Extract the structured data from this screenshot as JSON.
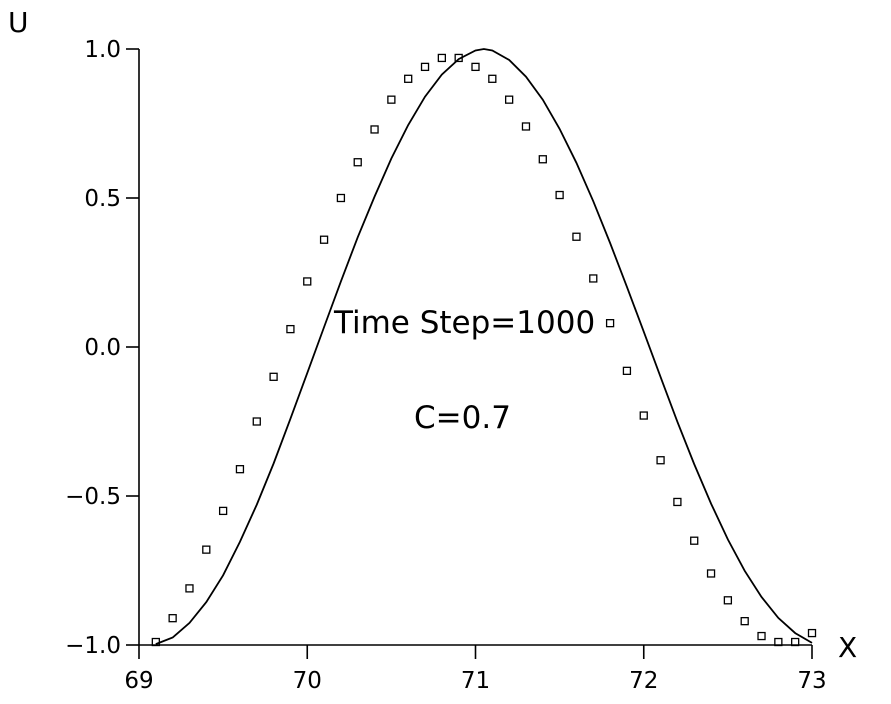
{
  "chart_data": {
    "type": "line",
    "title": "",
    "xlabel": "X",
    "ylabel": "U",
    "xlim": [
      69,
      73
    ],
    "ylim": [
      -1.0,
      1.0
    ],
    "x_ticks": [
      69,
      70,
      71,
      72,
      73
    ],
    "x_tick_labels": [
      "69",
      "70",
      "71",
      "72",
      "73"
    ],
    "y_ticks": [
      -1.0,
      -0.5,
      0.0,
      0.5,
      1.0
    ],
    "y_tick_labels": [
      "−1.0",
      "−0.5",
      "0.0",
      "0.5",
      "1.0"
    ],
    "grid": false,
    "legend": "none",
    "annotations": [
      "Time Step=1000",
      "C=0.7"
    ],
    "series": [
      {
        "kind": "line",
        "marker": "none",
        "color": "#000000",
        "x": [
          69.1,
          69.2,
          69.3,
          69.4,
          69.5,
          69.6,
          69.7,
          69.8,
          69.9,
          70.0,
          70.1,
          70.2,
          70.3,
          70.4,
          70.5,
          70.6,
          70.7,
          70.8,
          70.9,
          71.0,
          71.05,
          71.1,
          71.2,
          71.3,
          71.4,
          71.5,
          71.6,
          71.7,
          71.8,
          71.9,
          72.0,
          72.1,
          72.2,
          72.3,
          72.4,
          72.5,
          72.6,
          72.7,
          72.8,
          72.9,
          73.0
        ],
        "y": [
          -0.997,
          -0.975,
          -0.926,
          -0.856,
          -0.766,
          -0.654,
          -0.529,
          -0.391,
          -0.241,
          -0.087,
          0.067,
          0.22,
          0.368,
          0.505,
          0.633,
          0.745,
          0.84,
          0.914,
          0.966,
          0.995,
          1.0,
          0.995,
          0.963,
          0.907,
          0.83,
          0.732,
          0.618,
          0.489,
          0.349,
          0.202,
          0.051,
          -0.101,
          -0.251,
          -0.393,
          -0.526,
          -0.646,
          -0.751,
          -0.839,
          -0.909,
          -0.96,
          -0.993
        ]
      },
      {
        "kind": "scatter",
        "marker": "square",
        "color": "#000000",
        "x": [
          69.1,
          69.2,
          69.3,
          69.4,
          69.5,
          69.6,
          69.7,
          69.8,
          69.9,
          70.0,
          70.1,
          70.2,
          70.3,
          70.4,
          70.5,
          70.6,
          70.7,
          70.8,
          70.9,
          71.0,
          71.1,
          71.2,
          71.3,
          71.4,
          71.5,
          71.6,
          71.7,
          71.8,
          71.9,
          72.0,
          72.1,
          72.2,
          72.3,
          72.4,
          72.5,
          72.6,
          72.7,
          72.8,
          72.9,
          73.0
        ],
        "y": [
          -0.99,
          -0.91,
          -0.81,
          -0.68,
          -0.55,
          -0.41,
          -0.25,
          -0.1,
          0.06,
          0.22,
          0.36,
          0.5,
          0.62,
          0.73,
          0.83,
          0.9,
          0.94,
          0.97,
          0.97,
          0.94,
          0.9,
          0.83,
          0.74,
          0.63,
          0.51,
          0.37,
          0.23,
          0.08,
          -0.08,
          -0.23,
          -0.38,
          -0.52,
          -0.65,
          -0.76,
          -0.85,
          -0.92,
          -0.97,
          -0.99,
          -0.99,
          -0.96
        ]
      }
    ]
  }
}
